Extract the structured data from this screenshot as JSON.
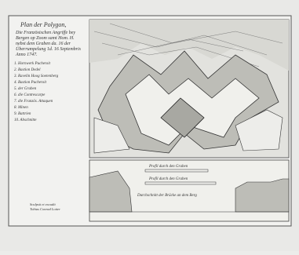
{
  "title": "Plan der Polygon,",
  "subtitle_lines": [
    "Die Französischen Angriffe bey",
    "Bergen op Zoom samt Hom. H.",
    "nebst dem Graben da. 16 der",
    "Überrumpelung 1d. 16 Septembris",
    "Anno 1747."
  ],
  "legend": [
    "1. Hornwerk Pucheroit",
    "2. Bastion Dedel",
    "3. Ravelin Hoog Soetenberg",
    "4. Bastion Pucheroit",
    "5. der Graben",
    "6. die Contrescarpe",
    "7. die Französ. Attaquen",
    "8. Minen",
    "9. Battrien",
    "10. Abschnitte"
  ],
  "profile_labels": [
    "Profil durch den Graben",
    "Profil durch den Graben",
    "Durchschnitt der Brücke an dem Berg"
  ],
  "signature": [
    "Sculpsit et excudit",
    "Tobias Conrad Lotter"
  ]
}
